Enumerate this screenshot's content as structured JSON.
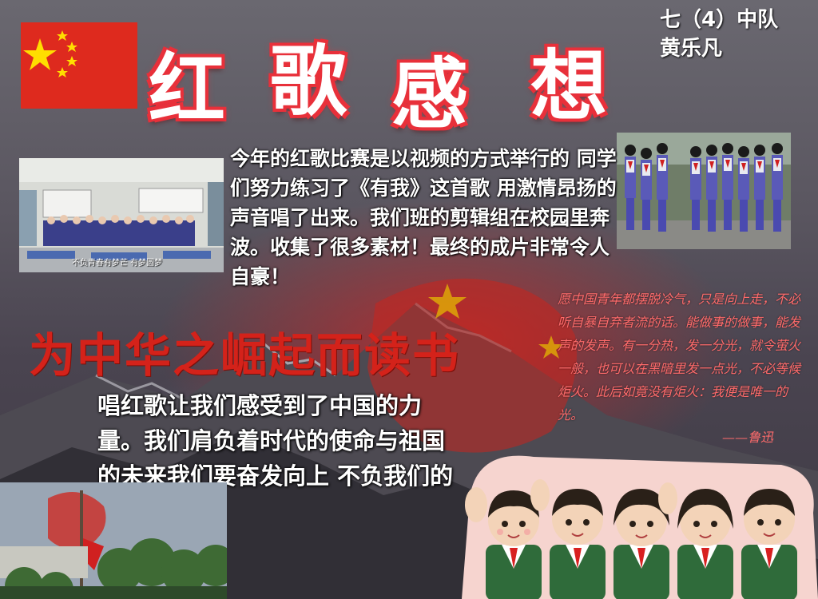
{
  "title_chars": [
    "红",
    "歌",
    "感",
    "想"
  ],
  "class_info": {
    "class_name": "七（4）中队",
    "student_name": "黄乐凡"
  },
  "photo1_caption": "不负青春有梦芒 有梦圆梦",
  "paragraph1": "今年的红歌比赛是以视频的方式举行的 同学们努力练习了《有我》这首歌 用激情昂扬的声音唱了出来。我们班的剪辑组在校园里奔波。收集了很多素材！最终的成片非常令人自豪！",
  "slogan": "为中华之崛起而读书",
  "quote": {
    "text": "愿中国青年都摆脱冷气，只是向上走，不必听自暴自弃者流的话。能做事的做事，能发声的发声。有一分热，发一分光，就令萤火一般，也可以在黑暗里发一点光，不必等候炬火。此后如竟没有炬火：我便是唯一的光。",
    "author": "——鲁迅"
  },
  "paragraph2": "唱红歌让我们感受到了中国的力量。我们肩负着时代的使命与祖国的未来我们要奋发向上 不负我们的身份！",
  "colors": {
    "title_outline": "#e8303a",
    "slogan": "#d4221a",
    "quote": "#ff6b6b",
    "flag_red": "#de2a1e",
    "flag_star": "#ffde00"
  }
}
